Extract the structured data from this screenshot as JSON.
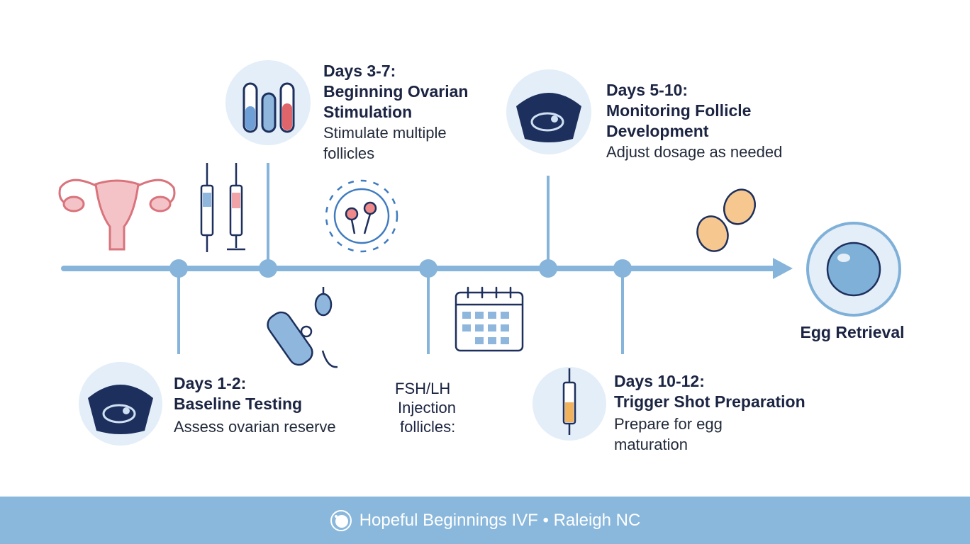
{
  "steps": [
    {
      "title1": "Days 1-2:",
      "title2": "Baseline Testing",
      "desc": "Assess ovarian reserve",
      "icon": "ultrasound-icon"
    },
    {
      "title1": "Days 3-7:",
      "title2": "Beginning Ovarian",
      "title3": "Stimulation",
      "desc1": "Stimulate multiple",
      "desc2": "follicles",
      "icon": "test-tubes-icon"
    },
    {
      "line1": "FSH/LH",
      "line2": "Injection",
      "line3": "follicles:",
      "icon": "calendar-icon"
    },
    {
      "title1": "Days 5-10:",
      "title2": "Monitoring Follicle",
      "title3": "Development",
      "desc": "Adjust dosage as needed",
      "icon": "ultrasound-icon"
    },
    {
      "title1": "Days 10-12:",
      "title2": "Trigger Shot Preparation",
      "desc1": "Prepare for egg",
      "desc2": "maturation",
      "icon": "syringe-icon"
    }
  ],
  "end": {
    "label": "Egg Retrieval",
    "icon": "egg-icon"
  },
  "footer": {
    "text": "Hopeful Beginnings IVF • Raleigh NC",
    "icon": "logo-icon"
  },
  "colors": {
    "timeline": "#86b4da",
    "text": "#1b2442",
    "footer": "#8ab8dc",
    "iconBg": "#e3eef8",
    "navy": "#1d2f5c"
  }
}
